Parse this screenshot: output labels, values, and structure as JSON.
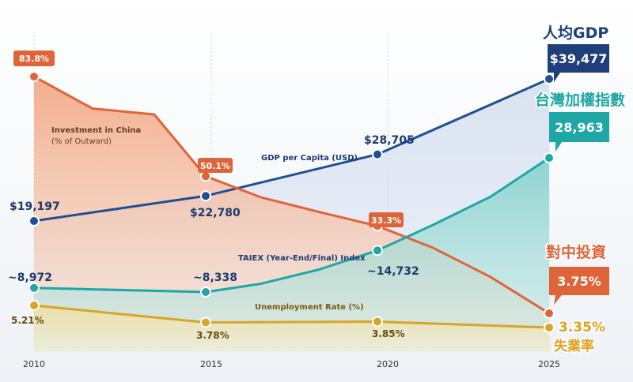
{
  "chart_data": {
    "type": "line",
    "x_ticks": [
      "2010",
      "2015",
      "2020",
      "2025"
    ],
    "xlim": [
      2010,
      2025
    ],
    "series": [
      {
        "key": "china",
        "name": "Investment in China",
        "subtitle": "(% of Outward)",
        "color": "#e0643a",
        "points": [
          [
            2010,
            83.8
          ],
          [
            2011.7,
            73
          ],
          [
            2013.5,
            71
          ],
          [
            2015,
            50.1
          ],
          [
            2016.6,
            43
          ],
          [
            2018.3,
            38
          ],
          [
            2020,
            33.3
          ],
          [
            2021.6,
            26
          ],
          [
            2023.3,
            16
          ],
          [
            2025,
            3.75
          ]
        ],
        "labels": [
          {
            "x": 2010,
            "text": "83.8%"
          },
          {
            "x": 2015,
            "text": "50.1%"
          },
          {
            "x": 2020,
            "text": "33.3%"
          }
        ],
        "end_label": "3.75%",
        "title_cn": "對中投資"
      },
      {
        "key": "gdp",
        "name": "GDP per Capita (USD)",
        "color": "#1f4f94",
        "points": [
          [
            2010,
            19197
          ],
          [
            2015,
            22780
          ],
          [
            2020,
            28705
          ],
          [
            2025,
            39477
          ]
        ],
        "labels": [
          {
            "x": 2010,
            "text": "$19,197"
          },
          {
            "x": 2015,
            "text": "$22,780"
          },
          {
            "x": 2020,
            "text": "$28,705"
          }
        ],
        "end_label": "$39,477",
        "title_cn": "人均GDP"
      },
      {
        "key": "taiex",
        "name": "TAIEX (Year-End/Final) Index",
        "color": "#1ea7a5",
        "points": [
          [
            2010,
            8972
          ],
          [
            2015,
            8338
          ],
          [
            2016.6,
            9600
          ],
          [
            2018.3,
            11800
          ],
          [
            2020,
            14732
          ],
          [
            2021.6,
            18600
          ],
          [
            2023.3,
            23000
          ],
          [
            2025,
            28963
          ]
        ],
        "labels": [
          {
            "x": 2010,
            "text": "~8,972"
          },
          {
            "x": 2015,
            "text": "~8,338"
          },
          {
            "x": 2020,
            "text": "~14,732"
          }
        ],
        "end_label": "28,963",
        "title_cn": "台灣加權指數"
      },
      {
        "key": "unemp",
        "name": "Unemployment Rate (%)",
        "color": "#d8a528",
        "points": [
          [
            2010,
            5.21
          ],
          [
            2015,
            3.78
          ],
          [
            2020,
            3.85
          ],
          [
            2025,
            3.35
          ]
        ],
        "labels": [
          {
            "x": 2010,
            "text": "5.21%"
          },
          {
            "x": 2015,
            "text": "3.78%"
          },
          {
            "x": 2020,
            "text": "3.85%"
          }
        ],
        "end_label": "3.35%",
        "title_cn": "失業率"
      }
    ]
  }
}
